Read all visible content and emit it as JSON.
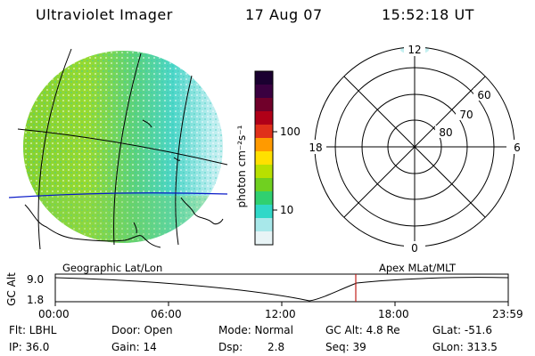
{
  "header": {
    "title": "Ultraviolet Imager",
    "date": "17 Aug 07",
    "time": "15:52:18 UT"
  },
  "colorbar": {
    "unit_label": "photon cm⁻²s⁻¹",
    "ticks": [
      "100",
      "10"
    ],
    "colors": [
      "#1a0030",
      "#3a0040",
      "#70002a",
      "#b00018",
      "#e0301a",
      "#ff9a00",
      "#ffe000",
      "#b8e000",
      "#70d020",
      "#30d070",
      "#30d8c8",
      "#a8e8ea",
      "#e8f4f6"
    ]
  },
  "polar_plot": {
    "mlt_labels": {
      "top": "12",
      "bottom": "0",
      "left": "18",
      "right": "6"
    },
    "lat_labels": [
      "60",
      "70",
      "80"
    ]
  },
  "timeline": {
    "left_title": "Geographic Lat/Lon",
    "right_title": "Apex MLat/MLT",
    "y_axis_label": "GC Alt",
    "y_ticks": [
      "9.0",
      "1.8"
    ],
    "x_ticks": [
      "00:00",
      "06:00",
      "12:00",
      "18:00",
      "23:59"
    ],
    "current_time_marker": "15:52"
  },
  "info": {
    "row1": {
      "filter": "Flt: LBHL",
      "door": "Door: Open",
      "mode": "Mode: Normal",
      "gc_alt": "GC Alt: 4.8 Re",
      "glat": "GLat: -51.6"
    },
    "row2": {
      "ip": "IP: 36.0",
      "gain": "Gain: 14",
      "dsp_label": "Dsp:",
      "dsp_value": "2.8",
      "seq": "Seq: 39",
      "glon": "GLon: 313.5"
    }
  }
}
